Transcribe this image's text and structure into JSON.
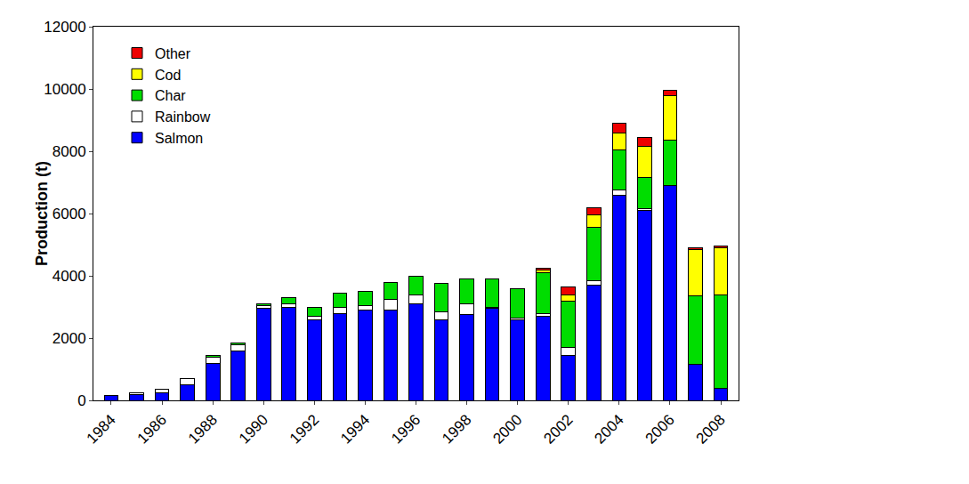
{
  "chart_data": {
    "type": "bar",
    "stacked": true,
    "y_label": "Production (t)",
    "categories": [
      "1984",
      null,
      "1986",
      null,
      "1988",
      null,
      "1990",
      null,
      "1992",
      null,
      "1994",
      null,
      "1996",
      null,
      "1998",
      null,
      "2000",
      null,
      "2002",
      null,
      "2004",
      null,
      "2006",
      null,
      "2008"
    ],
    "series": [
      {
        "name": "Salmon",
        "color": "#0000ff",
        "values": [
          150,
          200,
          250,
          500,
          1200,
          1600,
          2950,
          3000,
          2600,
          2800,
          2900,
          2900,
          3100,
          2600,
          2750,
          2950,
          2600,
          2700,
          1450,
          3700,
          6600,
          6100,
          6900,
          1150,
          400
        ]
      },
      {
        "name": "Rainbow",
        "color": "#ffffff",
        "values": [
          20,
          30,
          100,
          200,
          200,
          200,
          100,
          100,
          100,
          200,
          150,
          350,
          300,
          250,
          350,
          50,
          50,
          100,
          250,
          150,
          150,
          50,
          0,
          0,
          0
        ]
      },
      {
        "name": "Char",
        "color": "#00dd00",
        "values": [
          0,
          0,
          0,
          0,
          30,
          50,
          50,
          200,
          300,
          450,
          450,
          550,
          600,
          900,
          800,
          900,
          950,
          1300,
          1500,
          1700,
          1300,
          1000,
          1450,
          2200,
          3000
        ]
      },
      {
        "name": "Cod",
        "color": "#ffff00",
        "values": [
          0,
          0,
          0,
          0,
          0,
          0,
          0,
          0,
          0,
          0,
          0,
          0,
          0,
          0,
          0,
          0,
          0,
          100,
          200,
          400,
          550,
          1000,
          1450,
          1500,
          1500
        ]
      },
      {
        "name": "Other",
        "color": "#ee0000",
        "values": [
          0,
          0,
          0,
          0,
          0,
          0,
          0,
          0,
          0,
          0,
          0,
          0,
          0,
          0,
          0,
          0,
          0,
          50,
          250,
          250,
          300,
          300,
          150,
          50,
          50
        ]
      }
    ],
    "ylim": [
      0,
      12000
    ],
    "yticks": [
      0,
      2000,
      4000,
      6000,
      8000,
      10000,
      12000
    ],
    "grid": false,
    "legend": "upper left"
  }
}
